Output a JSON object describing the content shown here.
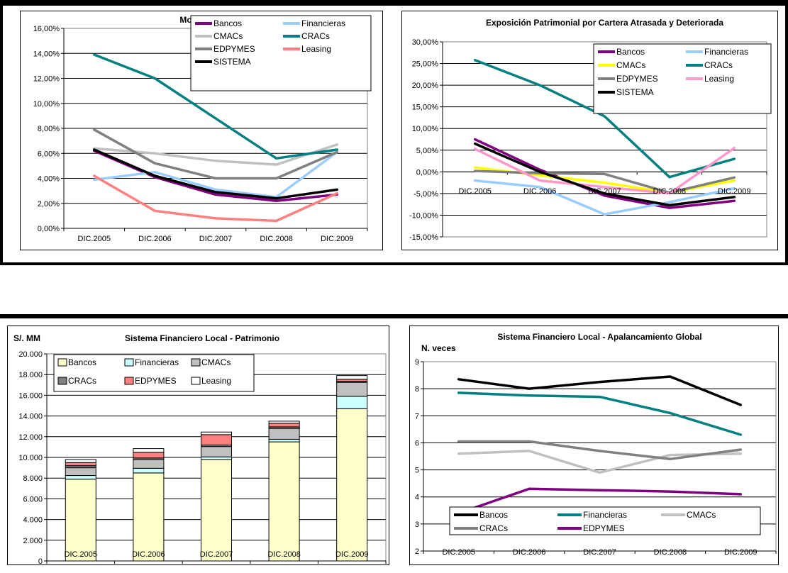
{
  "chart_data": [
    {
      "id": "morosidad",
      "type": "line",
      "title": "Morosidad Global",
      "ylabel": "",
      "categories": [
        "DIC.2005",
        "DIC.2006",
        "DIC.2007",
        "DIC.2008",
        "DIC.2009"
      ],
      "ylim": [
        0,
        16
      ],
      "ytick_step": 2,
      "y_tick_format": "pct",
      "legend_position": "top-right",
      "legend_columns": 2,
      "series": [
        {
          "name": "Bancos",
          "color": "#800080",
          "values": [
            6.2,
            4.1,
            2.7,
            2.2,
            2.7
          ]
        },
        {
          "name": "Financieras",
          "color": "#99ccff",
          "values": [
            3.9,
            4.5,
            3.1,
            2.5,
            6.1
          ]
        },
        {
          "name": "CMACs",
          "color": "#c0c0c0",
          "values": [
            6.4,
            6.0,
            5.4,
            5.1,
            6.7
          ]
        },
        {
          "name": "CRACs",
          "color": "#008080",
          "values": [
            13.9,
            12.0,
            8.8,
            5.6,
            6.3
          ]
        },
        {
          "name": "EDPYMES",
          "color": "#808080",
          "values": [
            7.9,
            5.2,
            4.0,
            4.0,
            6.1
          ]
        },
        {
          "name": "Leasing",
          "color": "#ff8080",
          "values": [
            4.2,
            1.4,
            0.8,
            0.6,
            2.8
          ]
        },
        {
          "name": "SISTEMA",
          "color": "#000000",
          "values": [
            6.3,
            4.2,
            2.9,
            2.4,
            3.1
          ]
        }
      ]
    },
    {
      "id": "exposicion",
      "type": "line",
      "title": "Exposición Patrimonial por Cartera Atrasada y Deteriorada",
      "ylabel": "",
      "categories": [
        "DIC.2005",
        "DIC.2006",
        "DIC.2007",
        "DIC.2008",
        "DIC.2009"
      ],
      "ylim": [
        -15,
        30
      ],
      "ytick_step": 5,
      "y_tick_format": "pct",
      "category_labels_at_zero": true,
      "legend_position": "top-right",
      "legend_columns": 2,
      "series": [
        {
          "name": "Bancos",
          "color": "#800080",
          "values": [
            7.5,
            0.5,
            -5.5,
            -8.3,
            -6.7
          ]
        },
        {
          "name": "Financieras",
          "color": "#99ccff",
          "values": [
            -2.0,
            -3.5,
            -9.8,
            -7.0,
            -3.8
          ]
        },
        {
          "name": "CMACs",
          "color": "#ffff00",
          "values": [
            1.0,
            -0.8,
            -2.5,
            -4.8,
            -2.0
          ]
        },
        {
          "name": "CRACs",
          "color": "#008080",
          "values": [
            25.8,
            20.0,
            12.8,
            -1.2,
            3.0
          ]
        },
        {
          "name": "EDPYMES",
          "color": "#808080",
          "values": [
            0.2,
            -0.3,
            -0.5,
            -4.8,
            -1.3
          ]
        },
        {
          "name": "Leasing",
          "color": "#ff99cc",
          "values": [
            5.3,
            -2.0,
            -3.5,
            -5.0,
            5.5
          ]
        },
        {
          "name": "SISTEMA",
          "color": "#000000",
          "values": [
            6.5,
            0.0,
            -5.0,
            -7.7,
            -5.8
          ]
        }
      ]
    },
    {
      "id": "patrimonio",
      "type": "bar",
      "stacked": true,
      "title": "Sistema Financiero Local - Patrimonio",
      "ylabel": "S/. MM",
      "categories": [
        "DIC.2005",
        "DIC.2006",
        "DIC.2007",
        "DIC.2008",
        "DIC.2009"
      ],
      "ylim": [
        0,
        20000
      ],
      "ytick_step": 2000,
      "y_tick_format": "thousands",
      "legend_position": "top-left",
      "legend_columns": 3,
      "series": [
        {
          "name": "Bancos",
          "color": "#ffffcc",
          "values": [
            7900,
            8500,
            9800,
            11500,
            14700
          ]
        },
        {
          "name": "Financieras",
          "color": "#ccffff",
          "values": [
            350,
            450,
            250,
            250,
            1200
          ]
        },
        {
          "name": "CMACs",
          "color": "#c0c0c0",
          "values": [
            750,
            850,
            1000,
            1050,
            1350
          ]
        },
        {
          "name": "CRACs",
          "color": "#808080",
          "values": [
            200,
            150,
            150,
            150,
            100
          ]
        },
        {
          "name": "EDPYMES",
          "color": "#ff8080",
          "values": [
            300,
            550,
            1000,
            350,
            200
          ]
        },
        {
          "name": "Leasing",
          "color": "#ffffff",
          "values": [
            300,
            350,
            250,
            200,
            350
          ]
        }
      ]
    },
    {
      "id": "apalancamiento",
      "type": "line",
      "title": "Sistema Financiero Local - Apalancamiento Global",
      "ylabel": "N. veces",
      "categories": [
        "DIC.2005",
        "DIC.2006",
        "DIC.2007",
        "DIC.2008",
        "DIC.2009"
      ],
      "ylim": [
        2,
        9
      ],
      "ytick_step": 1,
      "y_tick_format": "int",
      "legend_position": "bottom",
      "legend_columns": 3,
      "series": [
        {
          "name": "Bancos",
          "color": "#000000",
          "values": [
            8.35,
            8.0,
            8.25,
            8.45,
            7.4
          ]
        },
        {
          "name": "Financieras",
          "color": "#008080",
          "values": [
            7.85,
            7.75,
            7.7,
            7.1,
            6.3
          ]
        },
        {
          "name": "CMACs",
          "color": "#c0c0c0",
          "values": [
            5.6,
            5.7,
            4.9,
            5.55,
            5.6
          ]
        },
        {
          "name": "CRACs",
          "color": "#808080",
          "values": [
            6.05,
            6.05,
            5.7,
            5.4,
            5.75
          ]
        },
        {
          "name": "EDPYMES",
          "color": "#800080",
          "values": [
            3.4,
            4.3,
            4.25,
            4.2,
            4.1
          ]
        }
      ]
    }
  ]
}
